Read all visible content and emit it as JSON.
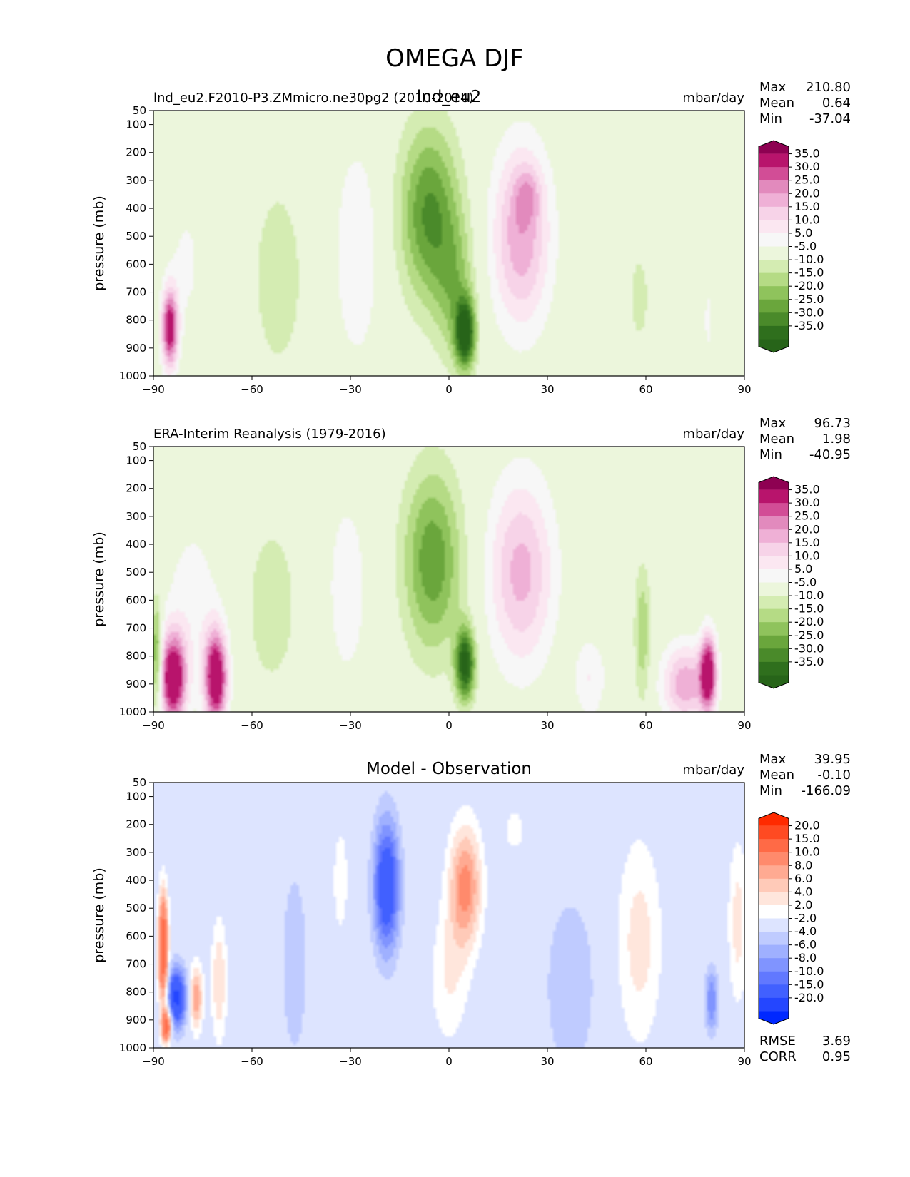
{
  "figure": {
    "title": "OMEGA DJF"
  },
  "chart_data": [
    {
      "type": "heatmap",
      "title": "lnd_eu2",
      "left_title": "lnd_eu2.F2010-P3.ZMmicro.ne30pg2 (2010-2014)",
      "units": "mbar/day",
      "xlabel": "",
      "ylabel": "pressure (mb)",
      "xlim": [
        -90,
        90
      ],
      "ylim": [
        1000,
        50
      ],
      "xticks": [
        "−90",
        "−60",
        "−30",
        "0",
        "30",
        "60",
        "90"
      ],
      "yticks": [
        "50",
        "100",
        "200",
        "300",
        "400",
        "500",
        "600",
        "700",
        "800",
        "900",
        "1000"
      ],
      "stats": [
        {
          "label": "Max",
          "value": "210.80"
        },
        {
          "label": "Mean",
          "value": "0.64"
        },
        {
          "label": "Min",
          "value": "-37.04"
        }
      ],
      "colorbar": {
        "labels": [
          "35.0",
          "30.0",
          "25.0",
          "20.0",
          "15.0",
          "10.0",
          "5.0",
          "-5.0",
          "-10.0",
          "-15.0",
          "-20.0",
          "-25.0",
          "-30.0",
          "-35.0"
        ],
        "colors": [
          "#8e0152",
          "#b8146c",
          "#d24d96",
          "#e28abd",
          "#efb0d6",
          "#f7d3e8",
          "#fbe7f1",
          "#f7f7f7",
          "#ecf6dc",
          "#d4ecb2",
          "#b5db85",
          "#8fc35c",
          "#6aa63c",
          "#4a8a2a",
          "#2f6f1d",
          "#276419"
        ]
      },
      "features": [
        {
          "lat": -85,
          "p": 830,
          "value": 40,
          "width": 2.5,
          "depth": 140
        },
        {
          "lat": -80,
          "p": 600,
          "value": 6,
          "width": 6,
          "depth": 280
        },
        {
          "lat": -52,
          "p": 650,
          "value": -9,
          "width": 8,
          "depth": 350
        },
        {
          "lat": -28,
          "p": 560,
          "value": 10,
          "width": 7,
          "depth": 400
        },
        {
          "lat": -6,
          "p": 420,
          "value": -26,
          "width": 9,
          "depth": 320
        },
        {
          "lat": 5,
          "p": 850,
          "value": -38,
          "width": 3,
          "depth": 120
        },
        {
          "lat": 2,
          "p": 700,
          "value": -14,
          "width": 6,
          "depth": 260
        },
        {
          "lat": 22,
          "p": 500,
          "value": 24,
          "width": 9,
          "depth": 330
        },
        {
          "lat": 24,
          "p": 350,
          "value": 10,
          "width": 4,
          "depth": 100
        },
        {
          "lat": 58,
          "p": 720,
          "value": -6,
          "width": 5,
          "depth": 280
        },
        {
          "lat": 79,
          "p": 800,
          "value": 6,
          "width": 2,
          "depth": 180
        }
      ]
    },
    {
      "type": "heatmap",
      "title": "",
      "left_title": "ERA-Interim Reanalysis (1979-2016)",
      "units": "mbar/day",
      "xlabel": "",
      "ylabel": "pressure (mb)",
      "xlim": [
        -90,
        90
      ],
      "ylim": [
        1000,
        50
      ],
      "xticks": [
        "−90",
        "−60",
        "−30",
        "0",
        "30",
        "60",
        "90"
      ],
      "yticks": [
        "50",
        "100",
        "200",
        "300",
        "400",
        "500",
        "600",
        "700",
        "800",
        "900",
        "1000"
      ],
      "stats": [
        {
          "label": "Max",
          "value": "96.73"
        },
        {
          "label": "Mean",
          "value": "1.98"
        },
        {
          "label": "Min",
          "value": "-40.95"
        }
      ],
      "colorbar": {
        "labels": [
          "35.0",
          "30.0",
          "25.0",
          "20.0",
          "15.0",
          "10.0",
          "5.0",
          "-5.0",
          "-10.0",
          "-15.0",
          "-20.0",
          "-25.0",
          "-30.0",
          "-35.0"
        ],
        "colors": [
          "#8e0152",
          "#b8146c",
          "#d24d96",
          "#e28abd",
          "#efb0d6",
          "#f7d3e8",
          "#fbe7f1",
          "#f7f7f7",
          "#ecf6dc",
          "#d4ecb2",
          "#b5db85",
          "#8fc35c",
          "#6aa63c",
          "#4a8a2a",
          "#2f6f1d",
          "#276419"
        ]
      },
      "features": [
        {
          "lat": -84,
          "p": 880,
          "value": 45,
          "width": 4,
          "depth": 160
        },
        {
          "lat": -71,
          "p": 880,
          "value": 45,
          "width": 3.5,
          "depth": 170
        },
        {
          "lat": -78,
          "p": 620,
          "value": 8,
          "width": 9,
          "depth": 320
        },
        {
          "lat": -89,
          "p": 800,
          "value": -25,
          "width": 1.5,
          "depth": 200
        },
        {
          "lat": -54,
          "p": 620,
          "value": -8,
          "width": 9,
          "depth": 340
        },
        {
          "lat": -31,
          "p": 560,
          "value": 8,
          "width": 7,
          "depth": 380
        },
        {
          "lat": -5,
          "p": 460,
          "value": -24,
          "width": 9,
          "depth": 330
        },
        {
          "lat": 5,
          "p": 830,
          "value": -38,
          "width": 3,
          "depth": 130
        },
        {
          "lat": 22,
          "p": 500,
          "value": 22,
          "width": 10,
          "depth": 340
        },
        {
          "lat": 43,
          "p": 880,
          "value": 10,
          "width": 5,
          "depth": 150
        },
        {
          "lat": 59,
          "p": 720,
          "value": -14,
          "width": 2.5,
          "depth": 250
        },
        {
          "lat": 72,
          "p": 900,
          "value": 24,
          "width": 7,
          "depth": 140
        },
        {
          "lat": 79,
          "p": 860,
          "value": 40,
          "width": 2.5,
          "depth": 140
        }
      ]
    },
    {
      "type": "heatmap",
      "title": "Model - Observation",
      "left_title": "",
      "units": "mbar/day",
      "xlabel": "",
      "ylabel": "pressure (mb)",
      "xlim": [
        -90,
        90
      ],
      "ylim": [
        1000,
        50
      ],
      "xticks": [
        "−90",
        "−60",
        "−30",
        "0",
        "30",
        "60",
        "90"
      ],
      "yticks": [
        "50",
        "100",
        "200",
        "300",
        "400",
        "500",
        "600",
        "700",
        "800",
        "900",
        "1000"
      ],
      "stats": [
        {
          "label": "Max",
          "value": "39.95"
        },
        {
          "label": "Mean",
          "value": "-0.10"
        },
        {
          "label": "Min",
          "value": "-166.09"
        }
      ],
      "extra_stats": [
        {
          "label": "RMSE",
          "value": "3.69"
        },
        {
          "label": "CORR",
          "value": "0.95"
        }
      ],
      "colorbar": {
        "labels": [
          "20.0",
          "15.0",
          "10.0",
          "8.0",
          "6.0",
          "4.0",
          "2.0",
          "-2.0",
          "-4.0",
          "-6.0",
          "-8.0",
          "-10.0",
          "-15.0",
          "-20.0"
        ],
        "colors": [
          "#ff2a00",
          "#ff4a22",
          "#ff6a46",
          "#ff8a6c",
          "#ffaa92",
          "#ffcab8",
          "#ffe6dc",
          "#ffffff",
          "#dde4ff",
          "#bfcbff",
          "#9fb0ff",
          "#8094ff",
          "#6178ff",
          "#4160ff",
          "#2446ff",
          "#0028ff"
        ]
      },
      "features": [
        {
          "lat": -87,
          "p": 650,
          "value": 20,
          "width": 1.5,
          "depth": 200
        },
        {
          "lat": -86,
          "p": 920,
          "value": 18,
          "width": 1.5,
          "depth": 60
        },
        {
          "lat": -83,
          "p": 820,
          "value": -16,
          "width": 3,
          "depth": 110
        },
        {
          "lat": -77,
          "p": 820,
          "value": 10,
          "width": 2,
          "depth": 120
        },
        {
          "lat": -70,
          "p": 760,
          "value": 6,
          "width": 2.5,
          "depth": 220
        },
        {
          "lat": -47,
          "p": 700,
          "value": -4,
          "width": 4,
          "depth": 350
        },
        {
          "lat": -33,
          "p": 400,
          "value": 3,
          "width": 3,
          "depth": 250
        },
        {
          "lat": -19,
          "p": 420,
          "value": -14,
          "width": 4,
          "depth": 240
        },
        {
          "lat": 5,
          "p": 420,
          "value": 11,
          "width": 5,
          "depth": 220
        },
        {
          "lat": 0,
          "p": 750,
          "value": 4,
          "width": 6,
          "depth": 250
        },
        {
          "lat": 20,
          "p": 220,
          "value": 3,
          "width": 4,
          "depth": 90
        },
        {
          "lat": 37,
          "p": 780,
          "value": -4,
          "width": 8,
          "depth": 340
        },
        {
          "lat": 58,
          "p": 620,
          "value": 5,
          "width": 7,
          "depth": 380
        },
        {
          "lat": 80,
          "p": 830,
          "value": -8,
          "width": 2,
          "depth": 120
        },
        {
          "lat": 88,
          "p": 550,
          "value": 5,
          "width": 3,
          "depth": 300
        }
      ]
    }
  ]
}
